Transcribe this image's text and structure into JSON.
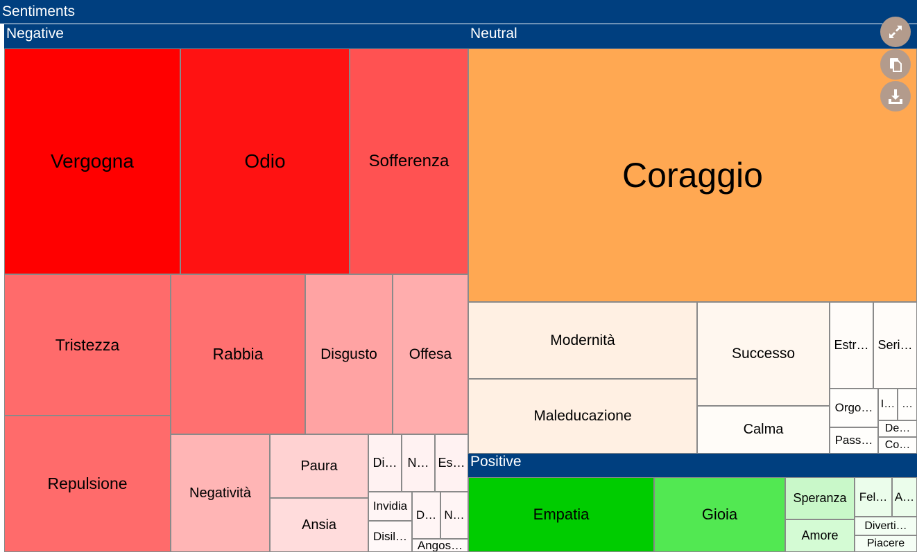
{
  "title": "Sentiments",
  "chart_data": {
    "type": "treemap",
    "title": "Sentiments",
    "groups": [
      {
        "name": "Negative",
        "color": "#ff0000",
        "items": [
          {
            "label": "Vergogna",
            "color": "#ff0000"
          },
          {
            "label": "Odio",
            "color": "#ff1212"
          },
          {
            "label": "Sofferenza",
            "color": "#ff5252"
          },
          {
            "label": "Tristezza",
            "color": "#ff6b6b"
          },
          {
            "label": "Repulsione",
            "color": "#ff6b6b"
          },
          {
            "label": "Rabbia",
            "color": "#ff7070"
          },
          {
            "label": "Disgusto",
            "color": "#ffa3a3"
          },
          {
            "label": "Offesa",
            "color": "#ffadad"
          },
          {
            "label": "Negatività",
            "color": "#ffb5b5"
          },
          {
            "label": "Paura",
            "color": "#ffd2d2"
          },
          {
            "label": "Ansia",
            "color": "#ffdcdc"
          },
          {
            "label": "Di…",
            "color": "#fff2f2"
          },
          {
            "label": "N…",
            "color": "#fff2f2"
          },
          {
            "label": "Es…",
            "color": "#fff2f2"
          },
          {
            "label": "Invidia",
            "color": "#fff5f5"
          },
          {
            "label": "D…",
            "color": "#fff5f5"
          },
          {
            "label": "N…",
            "color": "#fff5f5"
          },
          {
            "label": "Disil…",
            "color": "#fff8f8"
          },
          {
            "label": "Angos…",
            "color": "#fffafa"
          }
        ]
      },
      {
        "name": "Neutral",
        "color": "#ffa852",
        "items": [
          {
            "label": "Coraggio",
            "color": "#ffa852"
          },
          {
            "label": "Modernità",
            "color": "#fff0e3"
          },
          {
            "label": "Maleducazione",
            "color": "#fff0e3"
          },
          {
            "label": "Successo",
            "color": "#fff7ef"
          },
          {
            "label": "Calma",
            "color": "#fffcf8"
          },
          {
            "label": "Estr…",
            "color": "#fffcf9"
          },
          {
            "label": "Seri…",
            "color": "#fffcf9"
          },
          {
            "label": "Orgo…",
            "color": "#fffefc"
          },
          {
            "label": "I…",
            "color": "#fffefc"
          },
          {
            "label": "…",
            "color": "#fffefc"
          },
          {
            "label": "Pass…",
            "color": "#fffefc"
          },
          {
            "label": "De…",
            "color": "#fffefc"
          },
          {
            "label": "Co…",
            "color": "#fffefc"
          }
        ]
      },
      {
        "name": "Positive",
        "color": "#00c800",
        "items": [
          {
            "label": "Empatia",
            "color": "#00cc00"
          },
          {
            "label": "Gioia",
            "color": "#52e852"
          },
          {
            "label": "Speranza",
            "color": "#c9f8c9"
          },
          {
            "label": "Amore",
            "color": "#d4fbd4"
          },
          {
            "label": "Fel…",
            "color": "#ebfdeb"
          },
          {
            "label": "A…",
            "color": "#ebfdeb"
          },
          {
            "label": "Diverti…",
            "color": "#f3fef3"
          },
          {
            "label": "Piacere",
            "color": "#f5fef5"
          }
        ]
      }
    ]
  },
  "controls": {
    "fullscreen": "expand-icon",
    "copy": "copy-icon",
    "download": "download-icon"
  }
}
